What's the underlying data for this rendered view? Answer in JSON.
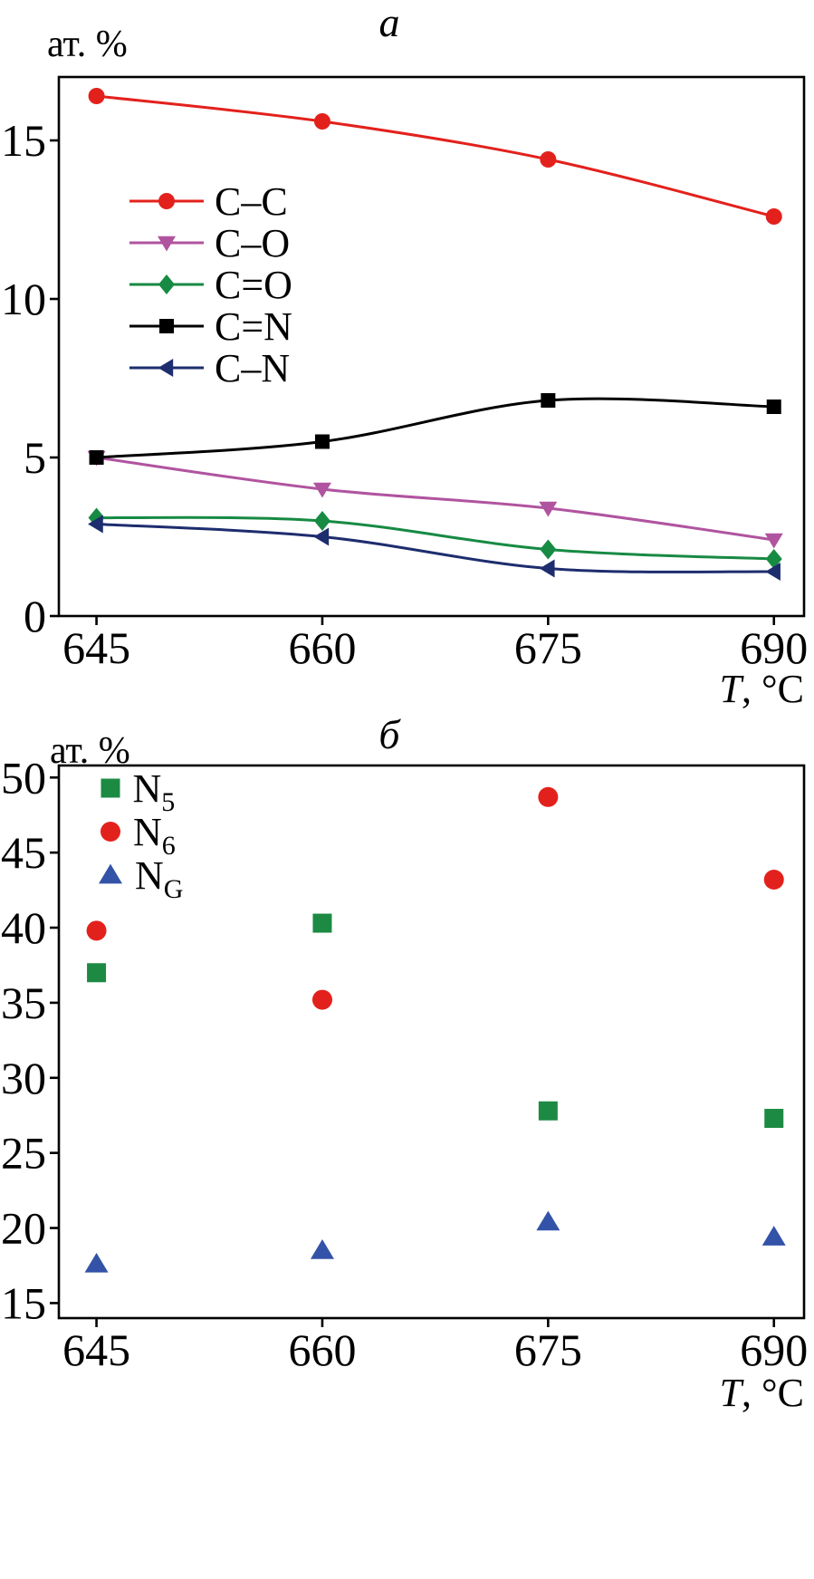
{
  "figure": {
    "background": "#ffffff"
  },
  "charts": [
    {
      "panel_label": "a",
      "y_axis_unit": "ат. %",
      "x_axis_label_var": "T",
      "x_axis_label_unit": ", °C",
      "chart_data": {
        "type": "line",
        "x": [
          645,
          660,
          675,
          690
        ],
        "xlim": [
          642.5,
          692
        ],
        "ylim": [
          0,
          17
        ],
        "xticks": [
          645,
          660,
          675,
          690
        ],
        "yticks": [
          0,
          5,
          10,
          15
        ],
        "grid": false,
        "legend_position": "upper-left-inside",
        "series": [
          {
            "name": "C–C",
            "marker": "circle",
            "color": "#e3211c",
            "values": [
              16.4,
              15.6,
              14.4,
              12.6
            ]
          },
          {
            "name": "C–O",
            "marker": "triangle-down",
            "color": "#b0549f",
            "values": [
              5.0,
              4.0,
              3.4,
              2.4
            ]
          },
          {
            "name": "C=O",
            "marker": "diamond",
            "color": "#178a43",
            "values": [
              3.1,
              3.0,
              2.1,
              1.8
            ]
          },
          {
            "name": "C=N",
            "marker": "square",
            "color": "#000000",
            "values": [
              5.0,
              5.5,
              6.8,
              6.6
            ]
          },
          {
            "name": "C–N",
            "marker": "triangle-left",
            "color": "#1d2d6e",
            "values": [
              2.9,
              2.5,
              1.5,
              1.4
            ]
          }
        ]
      }
    },
    {
      "panel_label": "б",
      "y_axis_unit": "ат. %",
      "x_axis_label_var": "T",
      "x_axis_label_unit": ", °C",
      "chart_data": {
        "type": "scatter",
        "x": [
          645,
          660,
          675,
          690
        ],
        "xlim": [
          642.5,
          692
        ],
        "ylim": [
          14,
          50.8
        ],
        "xticks": [
          645,
          660,
          675,
          690
        ],
        "yticks": [
          15,
          20,
          25,
          30,
          35,
          40,
          45,
          50
        ],
        "grid": false,
        "legend_position": "upper-left-inside",
        "series": [
          {
            "name": "N5",
            "label_base": "N",
            "label_sub": "5",
            "marker": "square",
            "color": "#1d8a44",
            "values": [
              37.0,
              40.3,
              27.8,
              27.3
            ]
          },
          {
            "name": "N6",
            "label_base": "N",
            "label_sub": "6",
            "marker": "circle",
            "color": "#e3211c",
            "values": [
              39.8,
              35.2,
              48.7,
              43.2
            ]
          },
          {
            "name": "NG",
            "label_base": "N",
            "label_sub": "G",
            "marker": "triangle-up",
            "color": "#3353a8",
            "values": [
              17.6,
              18.5,
              20.4,
              19.4
            ]
          }
        ]
      }
    }
  ]
}
